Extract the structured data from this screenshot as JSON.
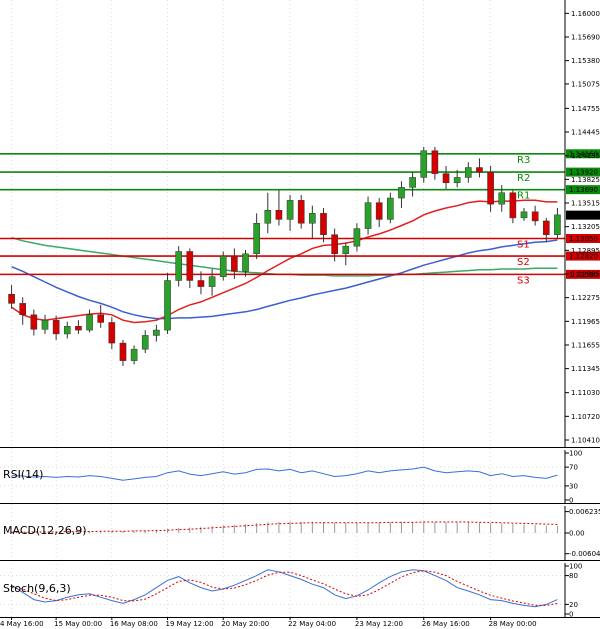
{
  "chart_data": {
    "type": "candlestick",
    "main": {
      "ylim": [
        1.1041,
        1.1607
      ],
      "price_ticks": [
        "1.16000",
        "1.15690",
        "1.15380",
        "1.15075",
        "1.14755",
        "1.14445",
        "1.14135",
        "1.13825",
        "1.13515",
        "1.13205",
        "1.12895",
        "1.12585",
        "1.12275",
        "1.11965",
        "1.11655",
        "1.11345",
        "1.11030",
        "1.10720",
        "1.10410"
      ],
      "current_price": "1.13356",
      "candles": [
        [
          1.1232,
          1.1244,
          1.1213,
          1.122
        ],
        [
          1.122,
          1.1228,
          1.1192,
          1.1205
        ],
        [
          1.1205,
          1.1212,
          1.1178,
          1.1186
        ],
        [
          1.1186,
          1.1205,
          1.118,
          1.1198
        ],
        [
          1.1198,
          1.1204,
          1.1172,
          1.118
        ],
        [
          1.118,
          1.1196,
          1.1174,
          1.119
        ],
        [
          1.119,
          1.1198,
          1.118,
          1.1185
        ],
        [
          1.1185,
          1.1212,
          1.1182,
          1.1205
        ],
        [
          1.1205,
          1.1218,
          1.1188,
          1.1195
        ],
        [
          1.1195,
          1.1202,
          1.116,
          1.1168
        ],
        [
          1.1168,
          1.1172,
          1.1138,
          1.1145
        ],
        [
          1.1145,
          1.1165,
          1.114,
          1.116
        ],
        [
          1.116,
          1.1185,
          1.1155,
          1.1178
        ],
        [
          1.1178,
          1.1192,
          1.117,
          1.1185
        ],
        [
          1.1185,
          1.126,
          1.118,
          1.125
        ],
        [
          1.125,
          1.1295,
          1.1242,
          1.1288
        ],
        [
          1.1288,
          1.1292,
          1.124,
          1.125
        ],
        [
          1.125,
          1.1262,
          1.1232,
          1.1242
        ],
        [
          1.1242,
          1.1265,
          1.123,
          1.1255
        ],
        [
          1.1255,
          1.1288,
          1.125,
          1.1282
        ],
        [
          1.1282,
          1.1292,
          1.1252,
          1.1262
        ],
        [
          1.1262,
          1.129,
          1.1255,
          1.1285
        ],
        [
          1.1285,
          1.1338,
          1.1278,
          1.1325
        ],
        [
          1.1325,
          1.1365,
          1.1312,
          1.1342
        ],
        [
          1.1342,
          1.1368,
          1.1322,
          1.133
        ],
        [
          1.133,
          1.1362,
          1.1315,
          1.1355
        ],
        [
          1.1355,
          1.1362,
          1.1318,
          1.1325
        ],
        [
          1.1325,
          1.1348,
          1.1305,
          1.1338
        ],
        [
          1.1338,
          1.1345,
          1.13,
          1.131
        ],
        [
          1.131,
          1.1318,
          1.1275,
          1.1285
        ],
        [
          1.1285,
          1.13,
          1.127,
          1.1295
        ],
        [
          1.1295,
          1.1325,
          1.1288,
          1.1318
        ],
        [
          1.1318,
          1.136,
          1.131,
          1.1352
        ],
        [
          1.1352,
          1.1358,
          1.132,
          1.133
        ],
        [
          1.133,
          1.1365,
          1.1325,
          1.1358
        ],
        [
          1.1358,
          1.138,
          1.1345,
          1.1372
        ],
        [
          1.1372,
          1.1392,
          1.136,
          1.1385
        ],
        [
          1.1385,
          1.1425,
          1.1378,
          1.142
        ],
        [
          1.142,
          1.1425,
          1.1382,
          1.139
        ],
        [
          1.139,
          1.14,
          1.137,
          1.1378
        ],
        [
          1.1378,
          1.1395,
          1.1372,
          1.1385
        ],
        [
          1.1385,
          1.1405,
          1.1378,
          1.1398
        ],
        [
          1.1398,
          1.141,
          1.1385,
          1.1392
        ],
        [
          1.1392,
          1.14,
          1.134,
          1.135
        ],
        [
          1.135,
          1.1375,
          1.134,
          1.1365
        ],
        [
          1.1365,
          1.1368,
          1.1325,
          1.1332
        ],
        [
          1.1332,
          1.1345,
          1.1328,
          1.134
        ],
        [
          1.134,
          1.1348,
          1.1322,
          1.1328
        ],
        [
          1.1328,
          1.1332,
          1.13,
          1.131
        ],
        [
          1.131,
          1.1345,
          1.1305,
          1.1336
        ]
      ],
      "levels": [
        {
          "name": "R3",
          "label": "1.14160",
          "value": 1.1416
        },
        {
          "name": "R2",
          "label": "1.13920",
          "value": 1.1392
        },
        {
          "name": "R1",
          "label": "1.13690",
          "value": 1.1369
        },
        {
          "name": "S1",
          "label": "1.13050",
          "value": 1.1305
        },
        {
          "name": "S2",
          "label": "1.12820",
          "value": 1.1282
        },
        {
          "name": "S3",
          "label": "1.12580",
          "value": 1.1258
        }
      ],
      "ma_red": [
        1.1215,
        1.1205,
        1.12,
        1.1198,
        1.12,
        1.1202,
        1.1204,
        1.1206,
        1.1207,
        1.1205,
        1.1198,
        1.1195,
        1.1196,
        1.1198,
        1.1204,
        1.1212,
        1.1218,
        1.1222,
        1.1228,
        1.1234,
        1.124,
        1.1246,
        1.1254,
        1.1263,
        1.1271,
        1.1279,
        1.1285,
        1.1292,
        1.1296,
        1.1297,
        1.1299,
        1.1302,
        1.1307,
        1.1311,
        1.1316,
        1.1322,
        1.1328,
        1.1336,
        1.1341,
        1.1345,
        1.1348,
        1.1352,
        1.1354,
        1.1353,
        1.1354,
        1.1354,
        1.1355,
        1.1355,
        1.1353,
        1.1353
      ],
      "ma_blue": [
        1.1268,
        1.1262,
        1.1255,
        1.1248,
        1.1241,
        1.1235,
        1.1229,
        1.1224,
        1.122,
        1.1215,
        1.1209,
        1.1205,
        1.1202,
        1.12,
        1.12,
        1.1201,
        1.1201,
        1.1202,
        1.1203,
        1.1205,
        1.1207,
        1.1209,
        1.1212,
        1.1216,
        1.122,
        1.1224,
        1.1227,
        1.1231,
        1.1234,
        1.1237,
        1.124,
        1.1244,
        1.1248,
        1.1252,
        1.1256,
        1.126,
        1.1265,
        1.127,
        1.1274,
        1.1278,
        1.1282,
        1.1286,
        1.1289,
        1.1291,
        1.1294,
        1.1296,
        1.1298,
        1.13,
        1.1301,
        1.1303
      ],
      "ma_green": [
        1.1306,
        1.1302,
        1.1299,
        1.1296,
        1.1294,
        1.1292,
        1.129,
        1.1288,
        1.1286,
        1.1284,
        1.1282,
        1.128,
        1.1278,
        1.1276,
        1.1274,
        1.1272,
        1.127,
        1.1268,
        1.1266,
        1.1264,
        1.1262,
        1.1261,
        1.126,
        1.1259,
        1.1258,
        1.1258,
        1.1257,
        1.1257,
        1.1257,
        1.1256,
        1.1256,
        1.1256,
        1.1256,
        1.1257,
        1.1257,
        1.1258,
        1.1258,
        1.1259,
        1.126,
        1.1261,
        1.1262,
        1.1263,
        1.1264,
        1.1264,
        1.1265,
        1.1265,
        1.1265,
        1.1266,
        1.1266,
        1.1266
      ]
    },
    "rsi": {
      "label": "RSI(14)",
      "ylim": [
        0,
        100
      ],
      "ticks": [
        "100",
        "70",
        "30",
        "0"
      ],
      "tick_values": [
        100,
        70,
        30,
        0
      ],
      "values": [
        52,
        51,
        49,
        50,
        48,
        50,
        49,
        52,
        50,
        46,
        42,
        45,
        48,
        50,
        58,
        62,
        55,
        52,
        56,
        60,
        55,
        58,
        65,
        66,
        62,
        65,
        58,
        62,
        56,
        50,
        52,
        56,
        62,
        58,
        62,
        64,
        66,
        70,
        62,
        58,
        60,
        62,
        60,
        52,
        56,
        50,
        52,
        48,
        46,
        53
      ]
    },
    "macd": {
      "label": "MACD(12,26,9)",
      "ylim": [
        -0.007,
        0.007
      ],
      "ticks": [
        "0.006235",
        "0.00",
        "-0.006044"
      ],
      "tick_values": [
        0.006235,
        0.0,
        -0.006044
      ],
      "hist": [
        0.0004,
        0.0004,
        0.0004,
        0.0005,
        0.0005,
        0.0005,
        0.0005,
        0.0006,
        0.0006,
        0.0006,
        0.0006,
        0.0007,
        0.0008,
        0.001,
        0.0012,
        0.0015,
        0.0016,
        0.0018,
        0.002,
        0.0022,
        0.0024,
        0.0026,
        0.0029,
        0.0031,
        0.0032,
        0.0033,
        0.0033,
        0.0033,
        0.0032,
        0.0031,
        0.003,
        0.003,
        0.003,
        0.0031,
        0.0031,
        0.0032,
        0.0032,
        0.0032,
        0.0032,
        0.0031,
        0.0031,
        0.0031,
        0.003,
        0.0029,
        0.0028,
        0.0026,
        0.0025,
        0.0023,
        0.0022,
        0.0021
      ],
      "signal": [
        0.0002,
        0.0002,
        0.0003,
        0.0003,
        0.0003,
        0.0004,
        0.0004,
        0.0004,
        0.0005,
        0.0005,
        0.0005,
        0.0006,
        0.0006,
        0.0007,
        0.0008,
        0.001,
        0.0011,
        0.0013,
        0.0015,
        0.0017,
        0.0019,
        0.0021,
        0.0023,
        0.0025,
        0.0027,
        0.0028,
        0.0029,
        0.003,
        0.003,
        0.003,
        0.003,
        0.003,
        0.003,
        0.003,
        0.0031,
        0.0031,
        0.0031,
        0.0032,
        0.0032,
        0.0032,
        0.0032,
        0.0032,
        0.0031,
        0.0031,
        0.003,
        0.0029,
        0.0028,
        0.0027,
        0.0026,
        0.0025
      ]
    },
    "stoch": {
      "label": "Stoch(9,6,3)",
      "ylim": [
        0,
        100
      ],
      "ticks": [
        "100",
        "80",
        "20",
        "0"
      ],
      "tick_values": [
        100,
        80,
        20,
        0
      ],
      "k": [
        60,
        45,
        30,
        25,
        28,
        35,
        40,
        42,
        35,
        28,
        22,
        30,
        40,
        55,
        70,
        78,
        65,
        55,
        48,
        52,
        60,
        70,
        80,
        92,
        88,
        80,
        72,
        62,
        55,
        40,
        32,
        38,
        50,
        65,
        78,
        88,
        92,
        90,
        80,
        70,
        55,
        48,
        40,
        30,
        28,
        22,
        18,
        15,
        20,
        30
      ],
      "d": [
        55,
        52,
        42,
        33,
        28,
        30,
        35,
        39,
        39,
        35,
        28,
        27,
        31,
        42,
        55,
        68,
        71,
        66,
        56,
        52,
        54,
        61,
        70,
        81,
        87,
        87,
        80,
        71,
        63,
        52,
        42,
        37,
        40,
        51,
        64,
        77,
        86,
        90,
        87,
        80,
        68,
        58,
        48,
        39,
        33,
        27,
        23,
        18,
        18,
        22
      ]
    },
    "time_labels": [
      {
        "i": 0,
        "text": "4 May 16:00"
      },
      {
        "i": 4,
        "text": "15 May 00:00"
      },
      {
        "i": 9,
        "text": "16 May 08:00"
      },
      {
        "i": 14,
        "text": "19 May 12:00"
      },
      {
        "i": 19,
        "text": "20 May 20:00"
      },
      {
        "i": 25,
        "text": "22 May 04:00"
      },
      {
        "i": 31,
        "text": "23 May 12:00"
      },
      {
        "i": 37,
        "text": "26 May 16:00"
      },
      {
        "i": 43,
        "text": "28 May 00:00"
      }
    ],
    "colors": {
      "bull": "#2aa12a",
      "bear": "#d40000",
      "level_r": "#0a8a0a",
      "level_s": "#d40000",
      "ma_red": "#e02020",
      "ma_blue": "#3a5fd0",
      "ma_green": "#3aaa6a",
      "grid": "#c8c8c8",
      "osc": "#3a6fd8",
      "osc_signal": "#d40000"
    }
  }
}
